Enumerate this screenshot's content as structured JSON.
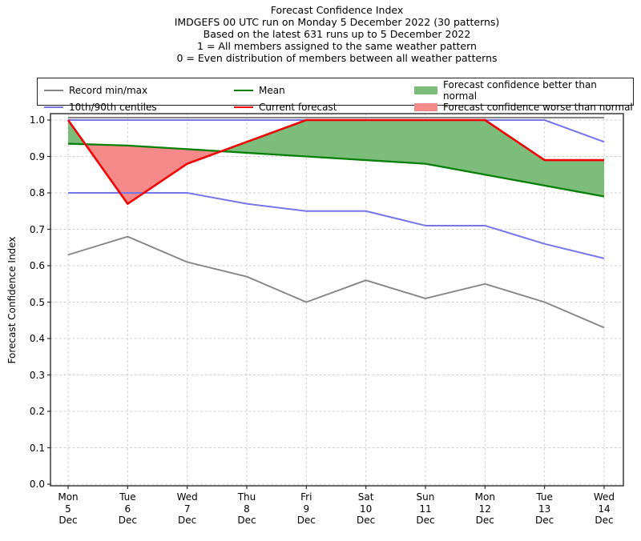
{
  "title": {
    "lines": [
      "Forecast Confidence Index",
      "IMDGEFS 00 UTC run on Monday 5 December 2022 (30 patterns)",
      "Based on the latest 631 runs up to 5 December 2022",
      "1 = All members assigned to the same weather pattern",
      "0 = Even distribution of members between all weather patterns"
    ]
  },
  "legend": {
    "entries": [
      {
        "label": "Record min/max",
        "sample": "line",
        "color": "#858585"
      },
      {
        "label": "10th/90th centiles",
        "sample": "line",
        "color": "#7575ec"
      },
      {
        "label": "Mean",
        "sample": "line",
        "color": "#078007"
      },
      {
        "label": "Current forecast",
        "sample": "line",
        "color": "#f00303"
      },
      {
        "label": "Forecast confidence better than normal",
        "sample": "patch",
        "color": "#7cbd7c"
      },
      {
        "label": "Forecast confidence worse than normal",
        "sample": "patch",
        "color": "#f68989"
      }
    ]
  },
  "chart_data": {
    "type": "line",
    "title": "Forecast Confidence Index",
    "grid": true,
    "legend_position": "top",
    "categories": [
      [
        "Mon",
        "5",
        "Dec"
      ],
      [
        "Tue",
        "6",
        "Dec"
      ],
      [
        "Wed",
        "7",
        "Dec"
      ],
      [
        "Thu",
        "8",
        "Dec"
      ],
      [
        "Fri",
        "9",
        "Dec"
      ],
      [
        "Sat",
        "10",
        "Dec"
      ],
      [
        "Sun",
        "11",
        "Dec"
      ],
      [
        "Mon",
        "12",
        "Dec"
      ],
      [
        "Tue",
        "13",
        "Dec"
      ],
      [
        "Wed",
        "14",
        "Dec"
      ]
    ],
    "y_axis": {
      "label": "Forecast Confidence Index",
      "ticks": [
        "0.0",
        "0.1",
        "0.2",
        "0.3",
        "0.4",
        "0.5",
        "0.6",
        "0.7",
        "0.8",
        "0.9",
        "1.0"
      ],
      "ylim": [
        0.0,
        1.0
      ]
    },
    "series": [
      {
        "name": "Record max",
        "color": "#858585",
        "values": [
          1.0,
          1.0,
          1.0,
          1.0,
          1.0,
          1.0,
          1.0,
          1.0,
          1.0,
          1.0
        ]
      },
      {
        "name": "Record min",
        "color": "#858585",
        "values": [
          0.63,
          0.68,
          0.61,
          0.57,
          0.5,
          0.56,
          0.51,
          0.55,
          0.5,
          0.43
        ]
      },
      {
        "name": "90th centile",
        "color": "#7575ec",
        "values": [
          1.0,
          1.0,
          1.0,
          1.0,
          1.0,
          1.0,
          1.0,
          1.0,
          1.0,
          0.94
        ]
      },
      {
        "name": "10th centile",
        "color": "#7575ec",
        "values": [
          0.8,
          0.8,
          0.8,
          0.77,
          0.75,
          0.75,
          0.71,
          0.71,
          0.66,
          0.62
        ]
      },
      {
        "name": "Mean",
        "color": "#078007",
        "values": [
          0.935,
          0.93,
          0.92,
          0.91,
          0.9,
          0.89,
          0.88,
          0.85,
          0.82,
          0.79
        ]
      },
      {
        "name": "Current forecast",
        "color": "#f00303",
        "values": [
          1.0,
          0.77,
          0.88,
          0.94,
          1.0,
          1.0,
          1.0,
          1.0,
          0.89,
          0.89
        ]
      }
    ],
    "fills": {
      "between": [
        "Current forecast",
        "Mean"
      ],
      "better_color": "#7cbd7c",
      "worse_color": "#f68989"
    }
  }
}
